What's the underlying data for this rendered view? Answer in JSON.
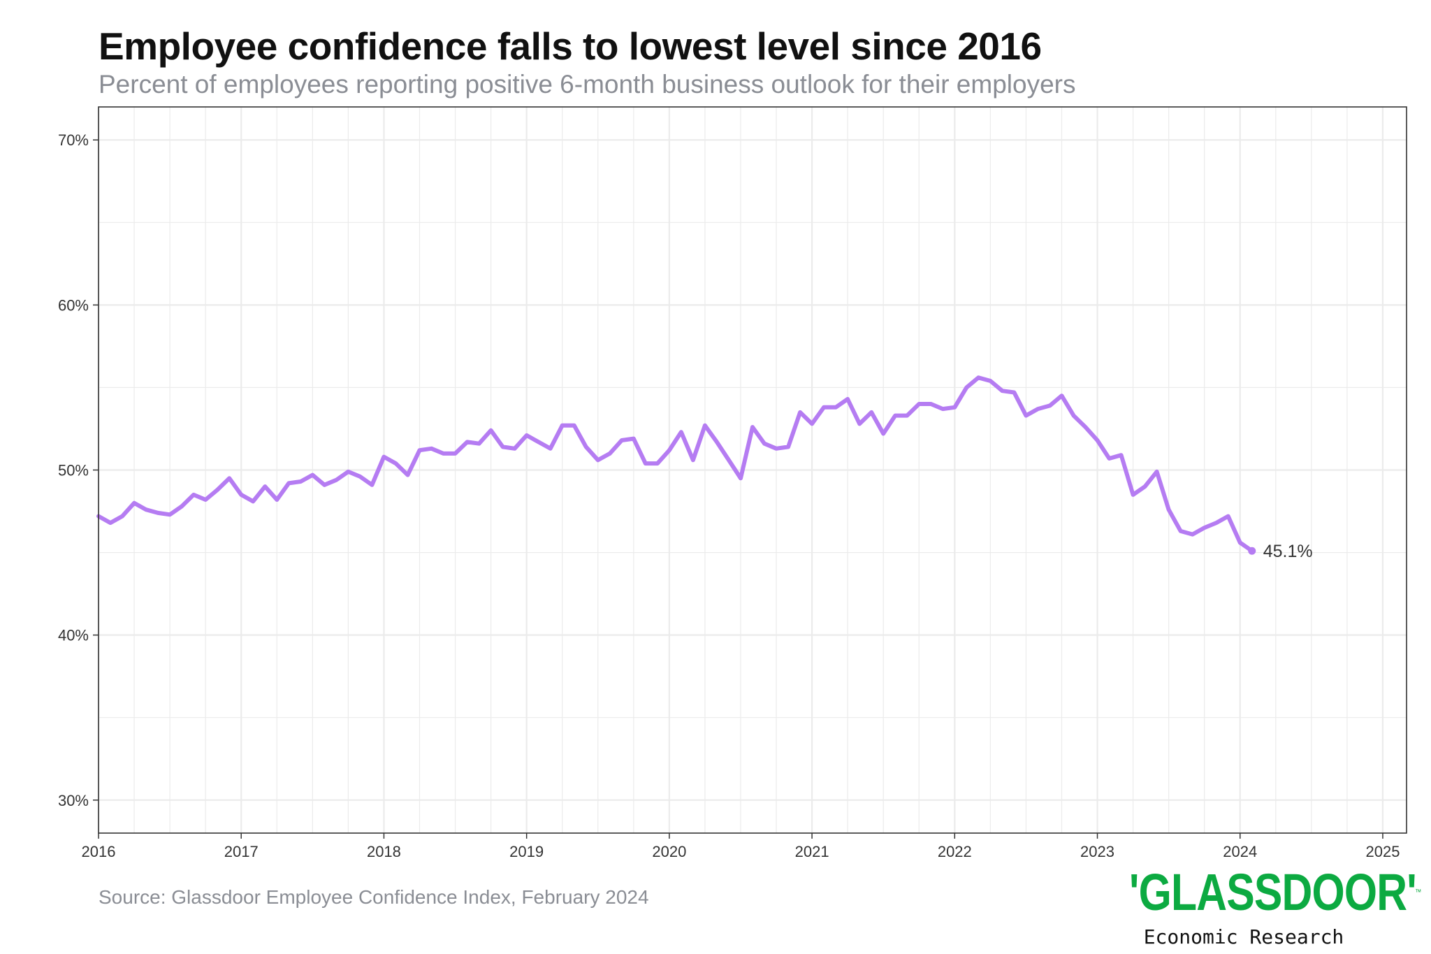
{
  "header": {
    "title": "Employee confidence falls to lowest level since 2016",
    "subtitle": "Percent of employees reporting positive 6-month business outlook for their employers"
  },
  "footer": {
    "source": "Source: Glassdoor Employee Confidence Index, February 2024",
    "brand_name": "'GLASSDOOR'",
    "brand_tm": "™",
    "brand_subtitle": "Economic Research"
  },
  "colors": {
    "line": "#b57cf2",
    "brand": "#0caa41",
    "grid": "#ebebeb",
    "text": "#333333"
  },
  "chart_data": {
    "type": "line",
    "title": "Employee confidence falls to lowest level since 2016",
    "subtitle": "Percent of employees reporting positive 6-month business outlook for their employers",
    "xlabel": "",
    "ylabel": "",
    "xlim": [
      "2016-01",
      "2025-03"
    ],
    "ylim": [
      28,
      72
    ],
    "y_ticks": [
      30,
      40,
      50,
      60,
      70
    ],
    "y_tick_labels": [
      "30%",
      "40%",
      "50%",
      "60%",
      "70%"
    ],
    "x_ticks": [
      2016,
      2017,
      2018,
      2019,
      2020,
      2021,
      2022,
      2023,
      2024,
      2025
    ],
    "x_tick_labels": [
      "2016",
      "2017",
      "2018",
      "2019",
      "2020",
      "2021",
      "2022",
      "2023",
      "2024",
      "2025"
    ],
    "grid": true,
    "legend": "none",
    "series": [
      {
        "x": [
          "2016-01",
          "2016-02",
          "2016-03",
          "2016-04",
          "2016-05",
          "2016-06",
          "2016-07",
          "2016-08",
          "2016-09",
          "2016-10",
          "2016-11",
          "2016-12",
          "2017-01",
          "2017-02",
          "2017-03",
          "2017-04",
          "2017-05",
          "2017-06",
          "2017-07",
          "2017-08",
          "2017-09",
          "2017-10",
          "2017-11",
          "2017-12",
          "2018-01",
          "2018-02",
          "2018-03",
          "2018-04",
          "2018-05",
          "2018-06",
          "2018-07",
          "2018-08",
          "2018-09",
          "2018-10",
          "2018-11",
          "2018-12",
          "2019-01",
          "2019-02",
          "2019-03",
          "2019-04",
          "2019-05",
          "2019-06",
          "2019-07",
          "2019-08",
          "2019-09",
          "2019-10",
          "2019-11",
          "2019-12",
          "2020-01",
          "2020-02",
          "2020-03",
          "2020-04",
          "2020-05",
          "2020-06",
          "2020-07",
          "2020-08",
          "2020-09",
          "2020-10",
          "2020-11",
          "2020-12",
          "2021-01",
          "2021-02",
          "2021-03",
          "2021-04",
          "2021-05",
          "2021-06",
          "2021-07",
          "2021-08",
          "2021-09",
          "2021-10",
          "2021-11",
          "2021-12",
          "2022-01",
          "2022-02",
          "2022-03",
          "2022-04",
          "2022-05",
          "2022-06",
          "2022-07",
          "2022-08",
          "2022-09",
          "2022-10",
          "2022-11",
          "2022-12",
          "2023-01",
          "2023-02",
          "2023-03",
          "2023-04",
          "2023-05",
          "2023-06",
          "2023-07",
          "2023-08",
          "2023-09",
          "2023-10",
          "2023-11",
          "2023-12",
          "2024-01",
          "2024-02"
        ],
        "values": [
          47.2,
          46.8,
          47.2,
          48.0,
          47.6,
          47.4,
          47.3,
          47.8,
          48.5,
          48.2,
          48.8,
          49.5,
          48.5,
          48.1,
          49.0,
          48.2,
          49.2,
          49.3,
          49.7,
          49.1,
          49.4,
          49.9,
          49.6,
          49.1,
          50.8,
          50.4,
          49.7,
          51.2,
          51.3,
          51.0,
          51.0,
          51.7,
          51.6,
          52.4,
          51.4,
          51.3,
          52.1,
          51.7,
          51.3,
          52.7,
          52.7,
          51.4,
          50.6,
          51.0,
          51.8,
          51.9,
          50.4,
          50.4,
          51.2,
          52.3,
          50.6,
          52.7,
          51.7,
          50.6,
          49.5,
          52.6,
          51.6,
          51.3,
          51.4,
          53.5,
          52.8,
          53.8,
          53.8,
          54.3,
          52.8,
          53.5,
          52.2,
          53.3,
          53.3,
          54.0,
          54.0,
          53.7,
          53.8,
          55.0,
          55.6,
          55.4,
          54.8,
          54.7,
          53.3,
          53.7,
          53.9,
          54.5,
          53.3,
          52.6,
          51.8,
          50.7,
          50.9,
          48.5,
          49.0,
          49.9,
          47.6,
          46.3,
          46.1,
          46.5,
          46.8,
          47.2,
          45.6,
          45.1
        ],
        "end_label": "45.1%"
      }
    ]
  }
}
